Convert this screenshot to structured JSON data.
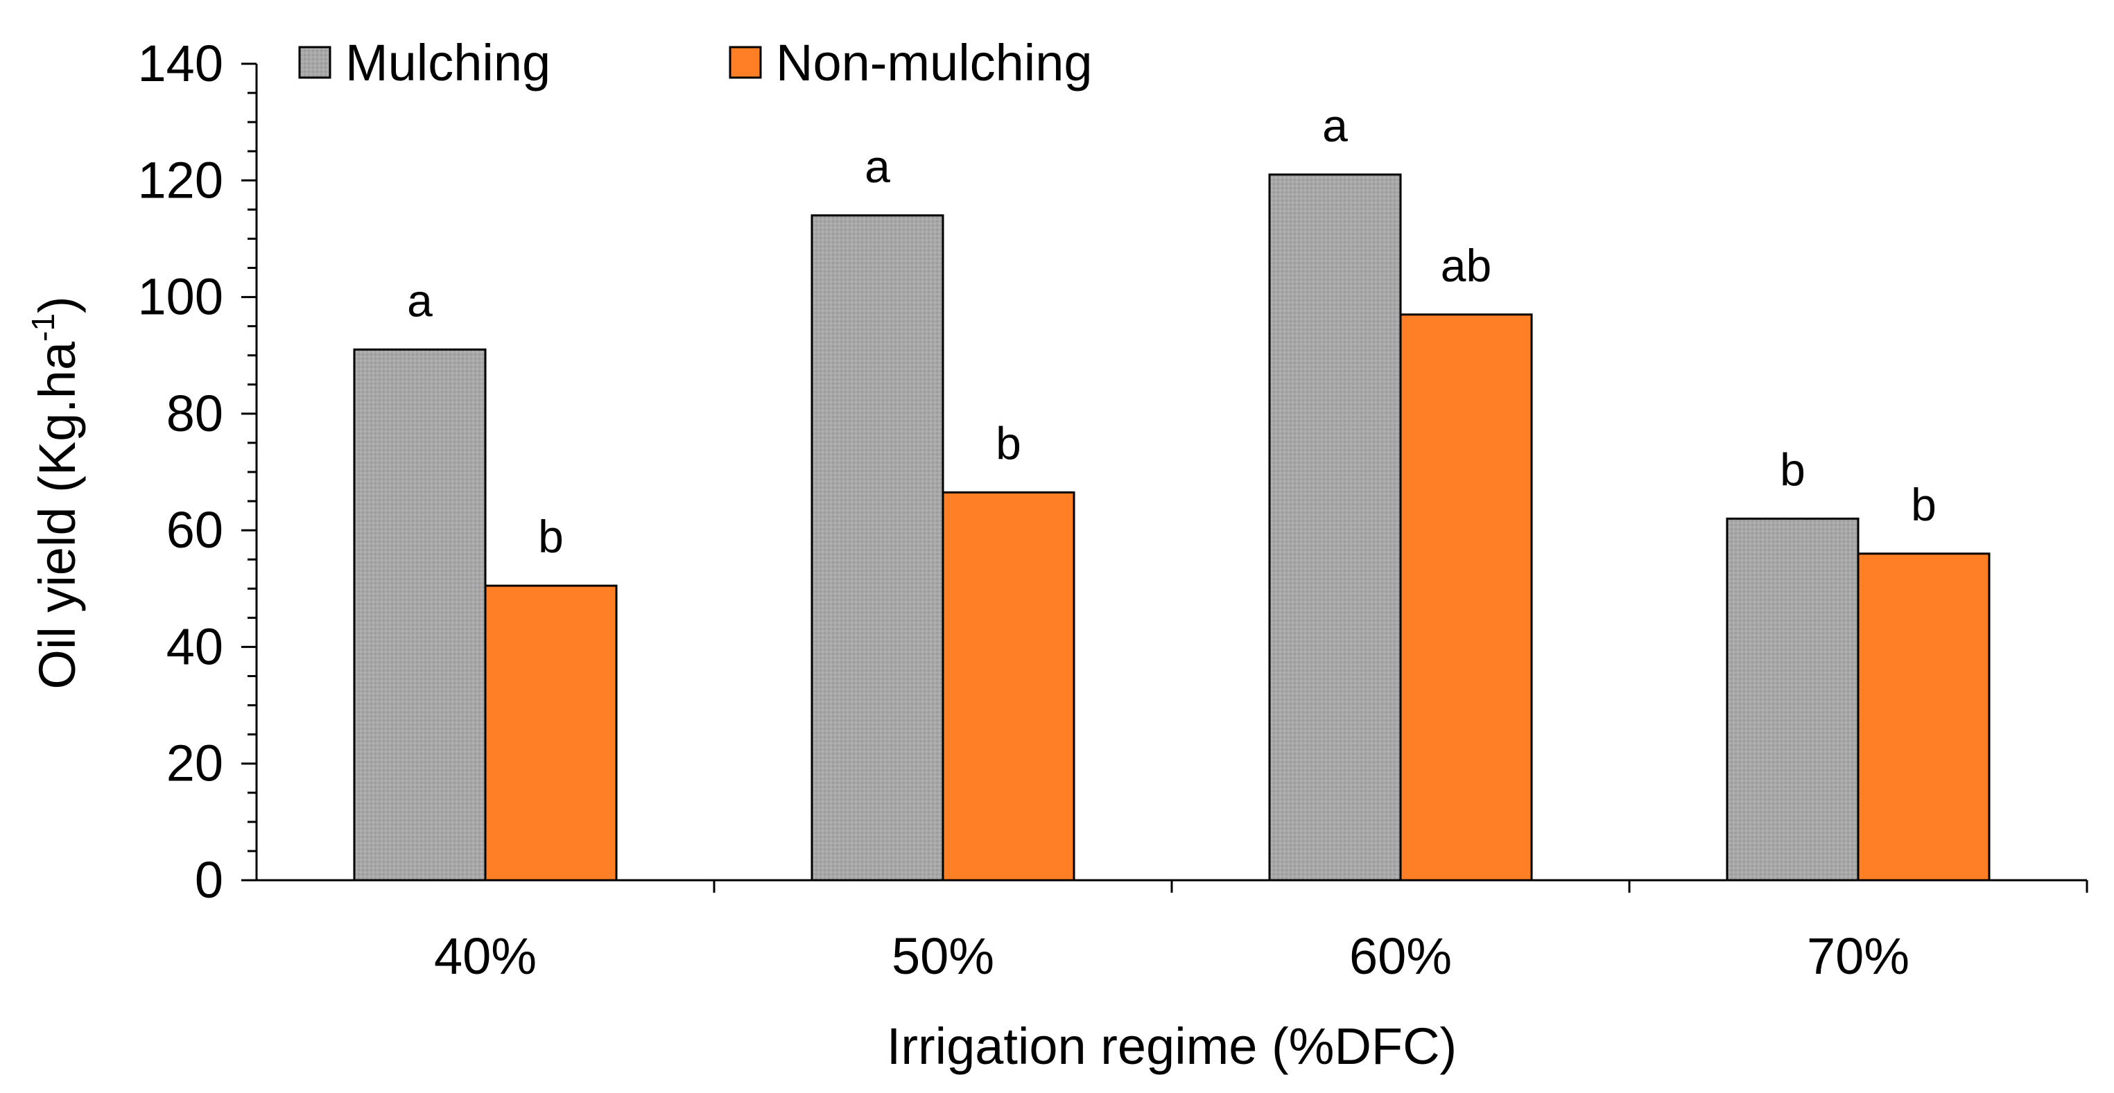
{
  "chart_data": {
    "type": "bar",
    "title": "",
    "xlabel": "Irrigation regime (%DFC)",
    "ylabel": {
      "prefix": "Oil yield (Kg.ha",
      "superscript": "-1",
      "suffix": ")"
    },
    "ylim": [
      0,
      140
    ],
    "yticks": [
      0,
      20,
      40,
      60,
      80,
      100,
      120,
      140
    ],
    "categories": [
      "40%",
      "50%",
      "60%",
      "70%"
    ],
    "series": [
      {
        "name": "Mulching",
        "color": "#a6a6a6",
        "values": [
          91,
          114,
          121,
          62
        ],
        "labels": [
          "a",
          "a",
          "a",
          "b"
        ]
      },
      {
        "name": "Non-mulching",
        "color": "#ff7f27",
        "values": [
          50.5,
          66.5,
          97,
          56
        ],
        "labels": [
          "b",
          "b",
          "ab",
          "b"
        ]
      }
    ],
    "legend": "top-left, horizontal",
    "grid": false
  }
}
